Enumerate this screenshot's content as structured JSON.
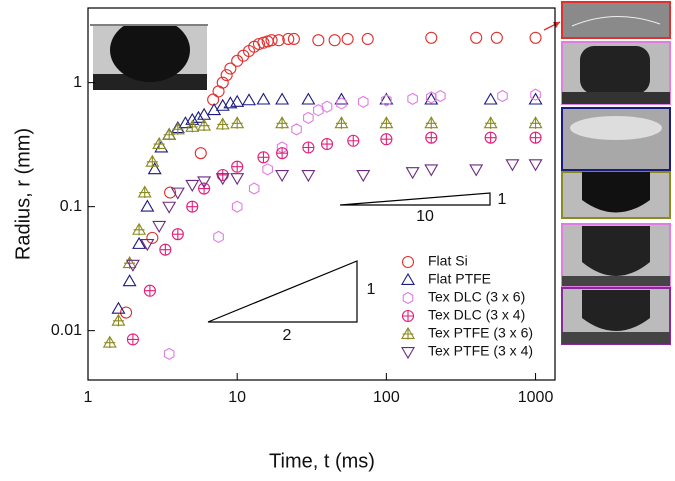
{
  "chart_data": {
    "type": "scatter",
    "xlabel": "Time, t (ms)",
    "ylabel": "Radius, r (mm)",
    "xscale": "log",
    "yscale": "log",
    "xlim": [
      1,
      1350
    ],
    "ylim": [
      0.004,
      4
    ],
    "xticks": [
      1,
      10,
      100,
      1000
    ],
    "yticks": [
      0.01,
      0.1,
      1
    ],
    "legend": "lower right",
    "annotations": [
      "1",
      "10",
      "1",
      "2"
    ],
    "series": [
      {
        "name": "Flat Si",
        "color": "#e03030",
        "marker": "circle",
        "x": [
          1.8,
          2.7,
          3.55,
          5.7,
          6.9,
          7.5,
          8,
          8.5,
          9,
          10,
          11,
          12,
          13,
          14,
          15,
          16,
          17,
          19,
          22,
          24,
          35,
          45,
          55,
          75,
          200,
          400,
          550,
          1000
        ],
        "values": [
          0.014,
          0.056,
          0.13,
          0.27,
          0.73,
          0.85,
          1.0,
          1.15,
          1.3,
          1.5,
          1.65,
          1.8,
          1.95,
          2.05,
          2.1,
          2.15,
          2.2,
          2.2,
          2.25,
          2.25,
          2.2,
          2.2,
          2.25,
          2.25,
          2.3,
          2.3,
          2.3,
          2.3
        ]
      },
      {
        "name": "Flat PTFE",
        "color": "#1a1a80",
        "marker": "triangle",
        "x": [
          1.6,
          1.9,
          2.2,
          2.5,
          2.8,
          3.1,
          3.5,
          4,
          4.5,
          5,
          5.5,
          6,
          7,
          8,
          9,
          10,
          12,
          15,
          20,
          30,
          50,
          100,
          200,
          500,
          1000
        ],
        "values": [
          0.015,
          0.025,
          0.05,
          0.1,
          0.2,
          0.3,
          0.38,
          0.43,
          0.47,
          0.5,
          0.52,
          0.55,
          0.6,
          0.65,
          0.68,
          0.7,
          0.72,
          0.73,
          0.73,
          0.73,
          0.73,
          0.73,
          0.73,
          0.73,
          0.73
        ]
      },
      {
        "name": "Tex DLC (3 x 6)",
        "color": "#e27ce2",
        "marker": "hexagon",
        "x": [
          3.5,
          7.5,
          10,
          13,
          16,
          20,
          25,
          30,
          35,
          40,
          50,
          70,
          100,
          150,
          200,
          230,
          600,
          1000
        ],
        "values": [
          0.0065,
          0.057,
          0.1,
          0.14,
          0.2,
          0.3,
          0.42,
          0.52,
          0.6,
          0.64,
          0.68,
          0.7,
          0.72,
          0.74,
          0.76,
          0.78,
          0.78,
          0.8
        ]
      },
      {
        "name": "Tex DLC (3 x 4)",
        "color": "#e0207a",
        "marker": "circle-plus",
        "x": [
          2,
          2.6,
          3.3,
          4,
          5,
          6,
          8,
          10,
          15,
          20,
          30,
          40,
          60,
          100,
          200,
          500,
          1000
        ],
        "values": [
          0.0085,
          0.021,
          0.045,
          0.06,
          0.1,
          0.14,
          0.18,
          0.21,
          0.25,
          0.27,
          0.3,
          0.32,
          0.34,
          0.35,
          0.36,
          0.36,
          0.36
        ]
      },
      {
        "name": "Tex PTFE (3 x 6)",
        "color": "#8a8a20",
        "marker": "triangle-plus",
        "x": [
          1.4,
          1.6,
          1.9,
          2.2,
          2.4,
          2.7,
          3,
          3.5,
          4,
          5,
          6,
          8,
          10,
          20,
          50,
          100,
          200,
          500,
          1000
        ],
        "values": [
          0.008,
          0.012,
          0.035,
          0.065,
          0.13,
          0.23,
          0.32,
          0.38,
          0.42,
          0.44,
          0.45,
          0.46,
          0.47,
          0.47,
          0.47,
          0.47,
          0.47,
          0.47,
          0.47
        ]
      },
      {
        "name": "Tex PTFE (3 x 4)",
        "color": "#6a2a80",
        "marker": "triangle-down",
        "x": [
          2,
          2.5,
          3,
          3.5,
          4,
          5,
          6,
          8,
          10,
          20,
          30,
          70,
          150,
          200,
          400,
          700,
          1000
        ],
        "values": [
          0.034,
          0.05,
          0.07,
          0.1,
          0.13,
          0.15,
          0.16,
          0.17,
          0.17,
          0.18,
          0.18,
          0.18,
          0.19,
          0.2,
          0.2,
          0.22,
          0.22
        ]
      }
    ]
  }
}
